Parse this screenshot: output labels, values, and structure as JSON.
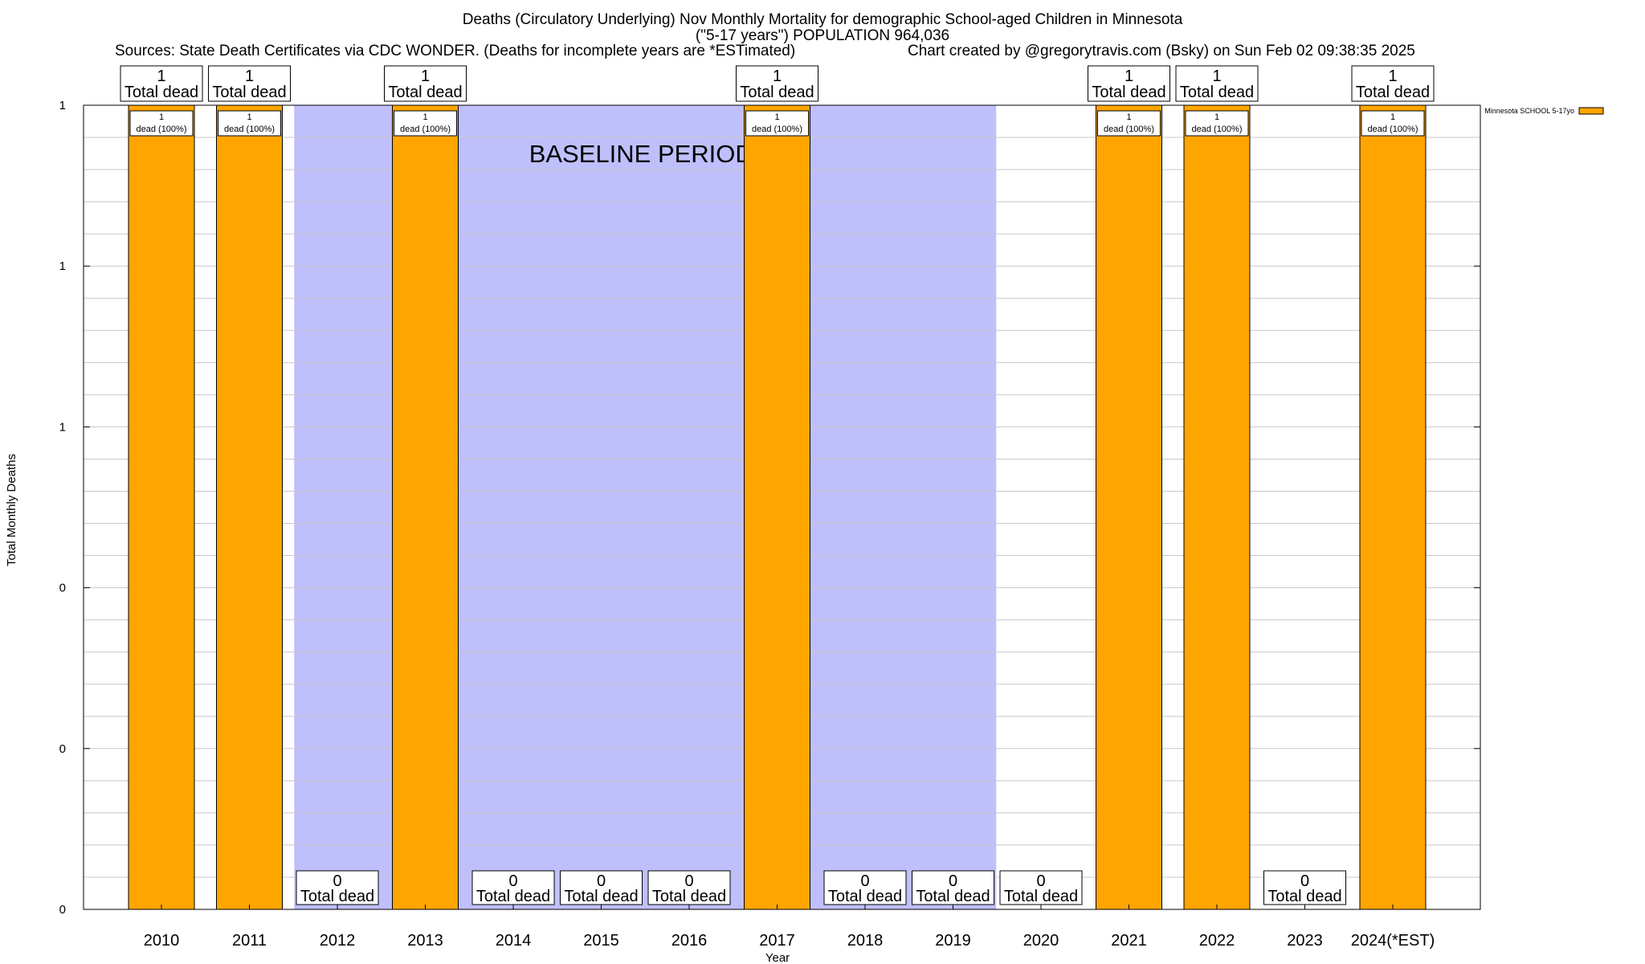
{
  "title": {
    "line1": "Deaths (Circulatory Underlying) Nov Monthly Mortality for demographic School-aged Children in Minnesota",
    "line2": "(\"5-17 years\") POPULATION 964,036",
    "sources": "Sources: State Death Certificates via CDC WONDER. (Deaths for incomplete years are *ESTimated)",
    "credit": "Chart created by @gregorytravis.com (Bsky) on Sun Feb 02 09:38:35 2025"
  },
  "chart_data": {
    "type": "bar",
    "xlabel": "Year",
    "ylabel": "Total Monthly Deaths",
    "ylim": [
      0,
      1
    ],
    "y_ticks": [
      0,
      0.2,
      0.4,
      0.6,
      0.8,
      1
    ],
    "y_tick_labels": [
      "0",
      "0",
      "0",
      "1",
      "1",
      "1"
    ],
    "grid": true,
    "legend_position": "top-right",
    "categories": [
      "2010",
      "2011",
      "2012",
      "2013",
      "2014",
      "2015",
      "2016",
      "2017",
      "2018",
      "2019",
      "2020",
      "2021",
      "2022",
      "2023",
      "2024(*EST)"
    ],
    "series": [
      {
        "name": "Minnesota SCHOOL 5-17yo",
        "color": "#ffa500",
        "values": [
          1,
          1,
          0,
          1,
          0,
          0,
          0,
          1,
          0,
          0,
          0,
          1,
          1,
          0,
          1
        ]
      }
    ],
    "total_labels": [
      "1",
      "1",
      "0",
      "1",
      "0",
      "0",
      "0",
      "1",
      "0",
      "0",
      "0",
      "1",
      "1",
      "0",
      "1"
    ],
    "total_label_suffix": "Total dead",
    "bar_labels": [
      "1",
      "1",
      "",
      "1",
      "",
      "",
      "",
      "1",
      "",
      "",
      "",
      "1",
      "1",
      "",
      "1"
    ],
    "bar_label_suffix": "dead (100%)",
    "baseline_annotation": "BASELINE PERIOD",
    "baseline_range": [
      "2012",
      "2019"
    ],
    "baseline_color": "#bfbffc"
  }
}
